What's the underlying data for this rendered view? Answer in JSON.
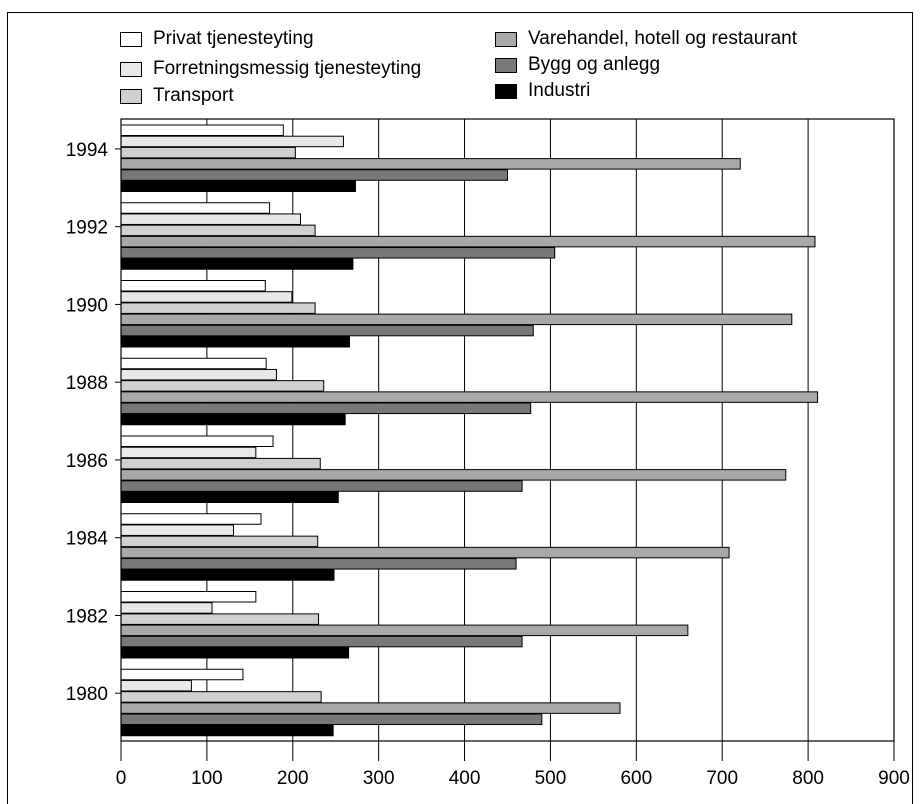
{
  "caption": "",
  "chart_data": {
    "type": "bar",
    "orientation": "horizontal",
    "title": "",
    "xlabel": "",
    "ylabel": "",
    "categories": [
      "1994",
      "1992",
      "1990",
      "1988",
      "1986",
      "1984",
      "1982",
      "1980"
    ],
    "xlim": [
      0,
      900
    ],
    "x_ticks": [
      0,
      100,
      200,
      300,
      400,
      500,
      600,
      700,
      800,
      900
    ],
    "grid": "vertical",
    "legend_placement": "top",
    "series": [
      {
        "name": "Privat tjenesteyting",
        "color": "#ffffff",
        "values": [
          189,
          173,
          168,
          169,
          177,
          163,
          157,
          142
        ]
      },
      {
        "name": "Forretningsmessig tjenesteyting",
        "color": "#e8e8e8",
        "values": [
          259,
          209,
          199,
          181,
          157,
          131,
          106,
          82
        ]
      },
      {
        "name": "Transport",
        "color": "#d0d0d0",
        "values": [
          203,
          226,
          226,
          236,
          232,
          229,
          230,
          233
        ]
      },
      {
        "name": "Varehandel, hotell og restaurant",
        "color": "#a8a8a8",
        "values": [
          721,
          808,
          781,
          811,
          774,
          708,
          660,
          581
        ]
      },
      {
        "name": "Bygg og anlegg",
        "color": "#787878",
        "values": [
          450,
          505,
          480,
          477,
          467,
          460,
          467,
          490
        ]
      },
      {
        "name": "Industri",
        "color": "#000000",
        "values": [
          273,
          270,
          266,
          261,
          253,
          248,
          265,
          247
        ]
      }
    ]
  }
}
